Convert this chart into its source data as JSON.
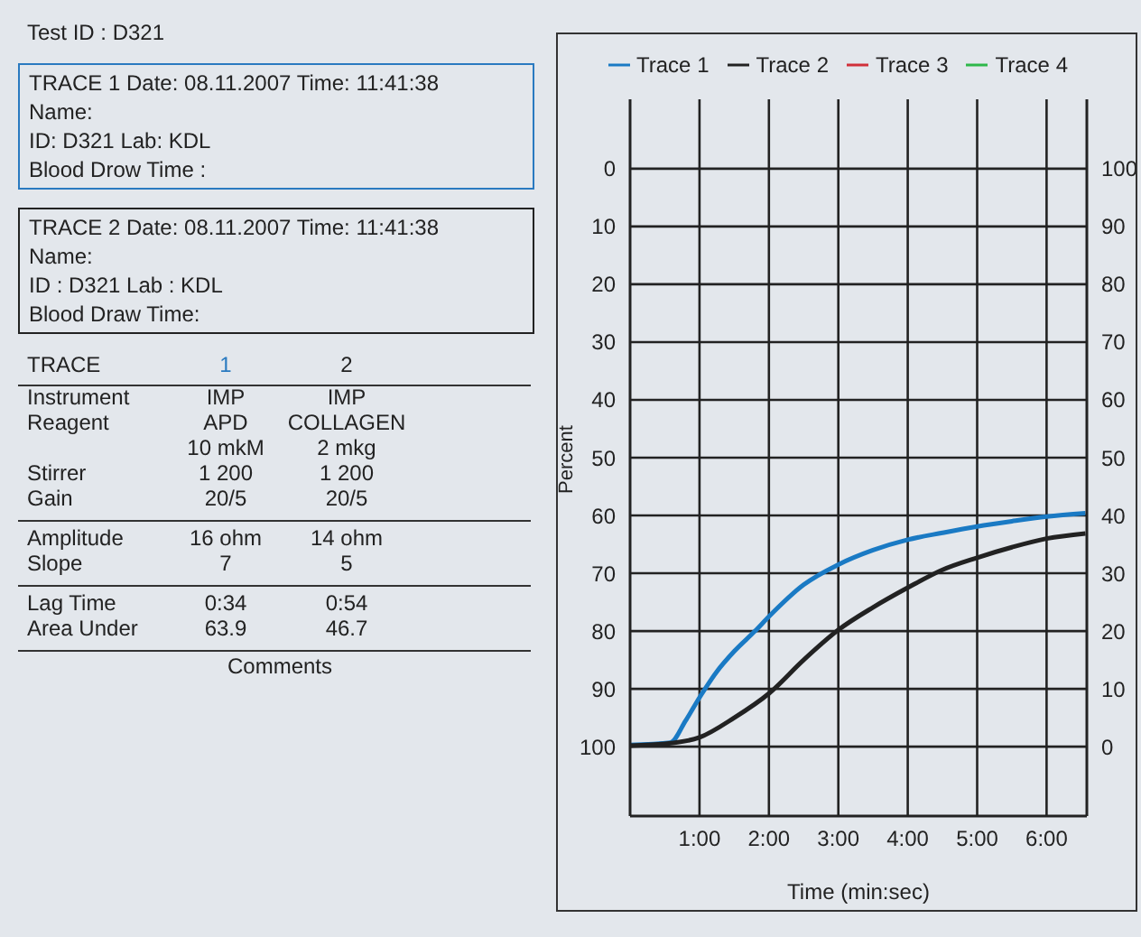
{
  "chart_data": [
    {
      "type": "other",
      "title": "Test ID : D321",
      "annotations": [
        "TRACE 1 Date: 08.11.2007 Time: 11:41:38",
        "Name:",
        "ID: D321 Lab: KDL",
        "Blood Drow Time :",
        "TRACE 2 Date: 08.11.2007 Time: 11:41:38",
        "Name:",
        "ID : D321 Lab : KDL",
        "Blood Draw Time:",
        "TRACE",
        "1",
        "2",
        "Instrument",
        "IMP",
        "IMP",
        "Reagent",
        "APD",
        "COLLAGEN",
        "10 mkM",
        "2 mkg",
        "Stirrer",
        "1 200",
        "1 200",
        "Gain",
        "20/5",
        "20/5",
        "Amplitude",
        "16 ohm",
        "14 ohm",
        "Slope",
        "7",
        "5",
        "Lag Time",
        "0:34",
        "0:54",
        "Area Under",
        "63.9",
        "46.7",
        "Comments"
      ]
    },
    {
      "type": "line",
      "xlabel": "Time (min:sec)",
      "ylabel": "Percent",
      "xlim": [
        0,
        6.58
      ],
      "xticks": [
        {
          "value": 1,
          "label": "1:00"
        },
        {
          "value": 2,
          "label": "2:00"
        },
        {
          "value": 3,
          "label": "3:00"
        },
        {
          "value": 4,
          "label": "4:00"
        },
        {
          "value": 5,
          "label": "5:00"
        },
        {
          "value": 6,
          "label": "6:00"
        }
      ],
      "ylim": [
        112,
        -12
      ],
      "yticks": [
        0,
        10,
        20,
        30,
        40,
        50,
        60,
        70,
        80,
        90,
        100
      ],
      "y2lim": [
        -12,
        112
      ],
      "y2ticks": [
        0,
        10,
        20,
        30,
        40,
        50,
        60,
        70,
        80,
        90,
        100
      ],
      "grid": true,
      "legend": "top",
      "marker": "none",
      "line_style": "solid",
      "series": [
        {
          "name": "Trace 1",
          "color": "#1a7ac4",
          "x": [
            0,
            0.58,
            0.8,
            1.0,
            1.25,
            1.5,
            1.8,
            2.0,
            2.5,
            3.0,
            3.5,
            4.0,
            4.5,
            5.0,
            5.5,
            6.0,
            6.56
          ],
          "values": [
            99.7,
            99.3,
            95.5,
            91.5,
            87,
            83.5,
            80,
            77.5,
            72,
            68.5,
            66,
            64.2,
            63,
            61.9,
            61,
            60.2,
            59.6
          ]
        },
        {
          "name": "Trace 2",
          "color": "#222222",
          "x": [
            0,
            0.5,
            1.0,
            1.5,
            2.0,
            2.5,
            3.0,
            3.5,
            4.0,
            4.5,
            5.0,
            5.5,
            6.0,
            6.56
          ],
          "values": [
            99.8,
            99.5,
            98.4,
            95,
            90.8,
            85,
            79.8,
            75.9,
            72.5,
            69.4,
            67.3,
            65.5,
            64,
            63.1
          ]
        },
        {
          "name": "Trace 3",
          "color": "#d0303a"
        },
        {
          "name": "Trace 4",
          "color": "#2eb84a"
        }
      ]
    }
  ]
}
